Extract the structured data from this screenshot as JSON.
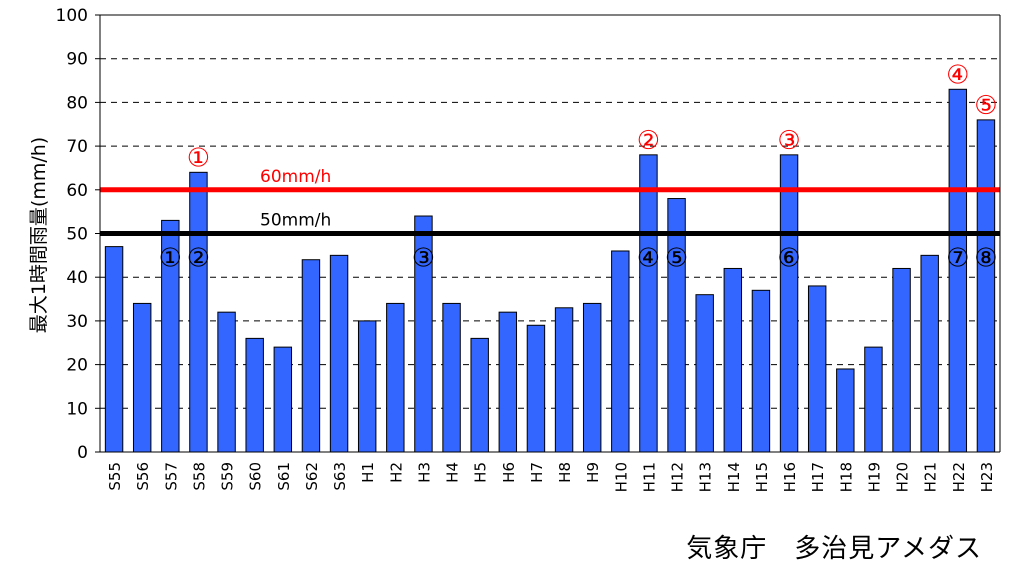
{
  "chart_data": {
    "type": "bar",
    "ylabel": "最大1時間雨量(mm/h)",
    "ylim": [
      0,
      100
    ],
    "yticks": [
      0,
      10,
      20,
      30,
      40,
      50,
      60,
      70,
      80,
      90,
      100
    ],
    "grid": "horizontal dashed",
    "categories": [
      "S55",
      "S56",
      "S57",
      "S58",
      "S59",
      "S60",
      "S61",
      "S62",
      "S63",
      "H1",
      "H2",
      "H3",
      "H4",
      "H5",
      "H6",
      "H7",
      "H8",
      "H9",
      "H10",
      "H11",
      "H12",
      "H13",
      "H14",
      "H15",
      "H16",
      "H17",
      "H18",
      "H19",
      "H20",
      "H21",
      "H22",
      "H23"
    ],
    "values": [
      47,
      34,
      53,
      64,
      32,
      26,
      24,
      44,
      45,
      30,
      34,
      54,
      34,
      26,
      32,
      29,
      33,
      34,
      46,
      68,
      58,
      36,
      42,
      37,
      68,
      38,
      19,
      24,
      42,
      45,
      83,
      76
    ],
    "bar_color": "#3366ff",
    "reference_lines": [
      {
        "label": "60mm/h",
        "value": 60,
        "color": "#ff0000"
      },
      {
        "label": "50mm/h",
        "value": 50,
        "color": "#000000"
      }
    ],
    "annotations_red": [
      {
        "category": "S58",
        "label": "①"
      },
      {
        "category": "H11",
        "label": "②"
      },
      {
        "category": "H16",
        "label": "③"
      },
      {
        "category": "H22",
        "label": "④"
      },
      {
        "category": "H23",
        "label": "⑤"
      }
    ],
    "annotations_black": [
      {
        "category": "S57",
        "label": "①"
      },
      {
        "category": "S58",
        "label": "②"
      },
      {
        "category": "H3",
        "label": "③"
      },
      {
        "category": "H11",
        "label": "④"
      },
      {
        "category": "H12",
        "label": "⑤"
      },
      {
        "category": "H16",
        "label": "⑥"
      },
      {
        "category": "H22",
        "label": "⑦"
      },
      {
        "category": "H23",
        "label": "⑧"
      }
    ]
  },
  "source": "気象庁　多治見アメダス",
  "colors": {
    "red": "#ff0000",
    "black": "#000000",
    "bar": "#3366ff"
  }
}
